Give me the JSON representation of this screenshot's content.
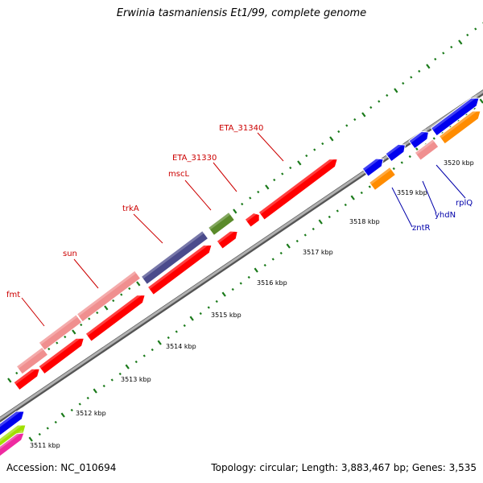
{
  "title": "Erwinia tasmaniensis Et1/99, complete genome",
  "footer": {
    "accession": "Accession: NC_010694",
    "summary": "Topology: circular; Length: 3,883,467 bp; Genes: 3,535"
  },
  "colors": {
    "backbone": "#999999",
    "tick_green": "#1a7a1a",
    "label_red": "#cc0000",
    "label_blue": "#0000aa",
    "red_gene": "#ff0000",
    "pink_gene": "#f08f8f",
    "purple_gene": "#4b4b8c",
    "olive_gene": "#5a8a2a",
    "blue_gene": "#0000ee",
    "orange_gene": "#ff8c00",
    "lime_gene": "#a0e000",
    "magenta_gene": "#ee2aa0"
  },
  "kbp_labels": [
    "3511 kbp",
    "3512 kbp",
    "3513 kbp",
    "3514 kbp",
    "3515 kbp",
    "3516 kbp",
    "3517 kbp",
    "3518 kbp",
    "3519 kbp",
    "3520 kbp"
  ],
  "gene_labels": [
    {
      "text": "fmt",
      "color": "red"
    },
    {
      "text": "sun",
      "color": "red"
    },
    {
      "text": "trkA",
      "color": "red"
    },
    {
      "text": "mscL",
      "color": "red"
    },
    {
      "text": "ETA_31330",
      "color": "red"
    },
    {
      "text": "ETA_31340",
      "color": "red"
    },
    {
      "text": "zntR",
      "color": "blue"
    },
    {
      "text": "yhdN",
      "color": "blue"
    },
    {
      "text": "rplQ",
      "color": "blue"
    }
  ]
}
